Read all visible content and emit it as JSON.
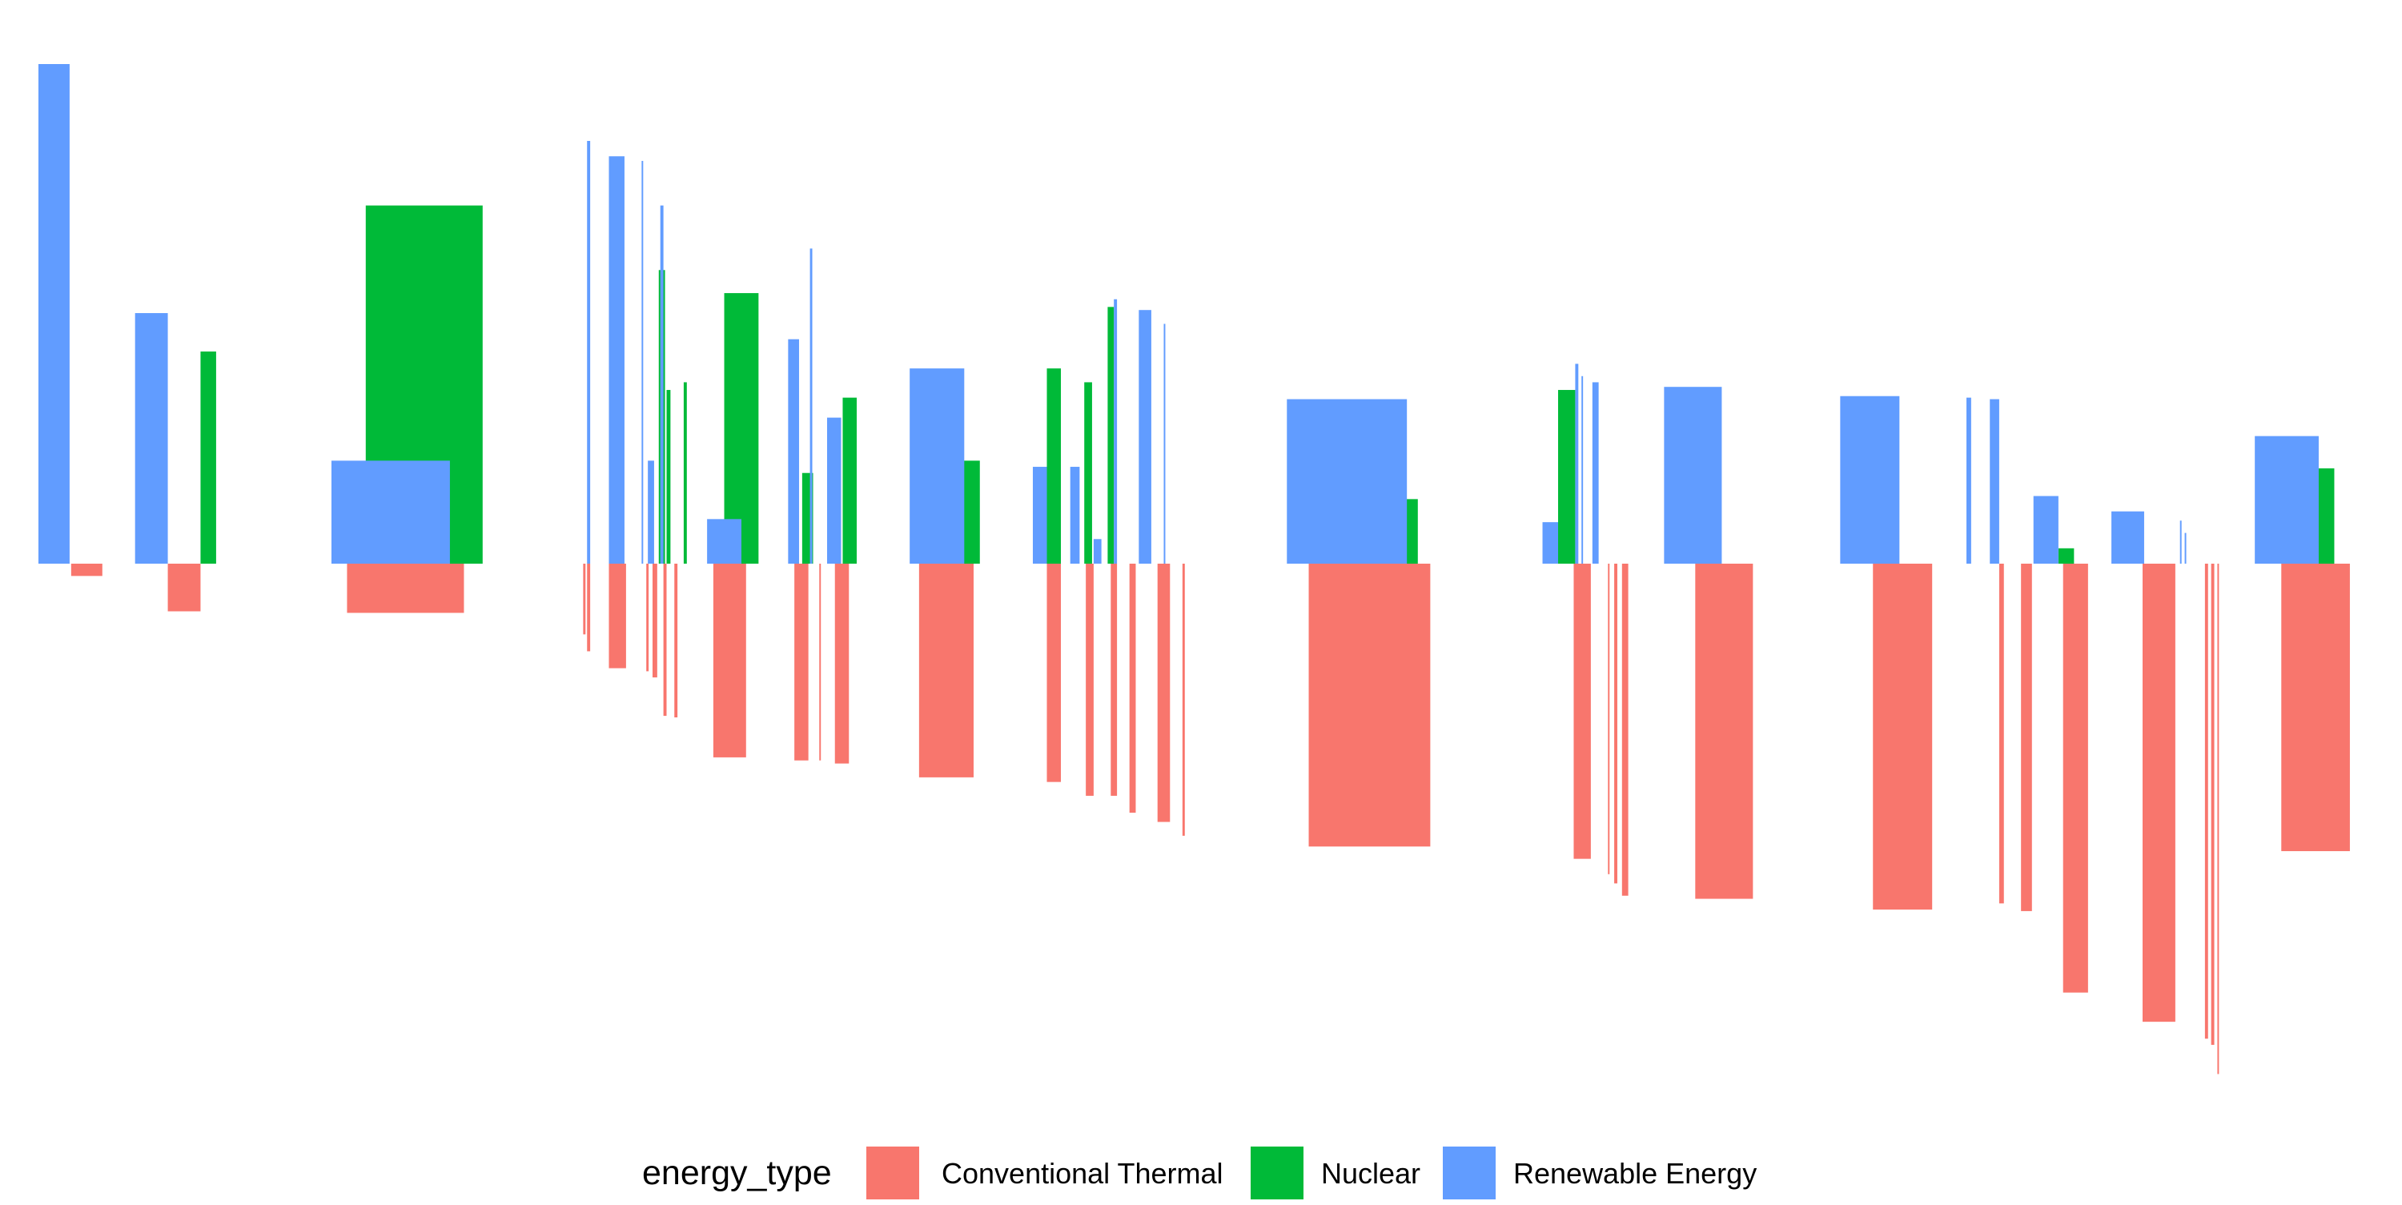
{
  "chart_data": {
    "type": "bar",
    "title": "",
    "xlabel": "",
    "ylabel": "",
    "grid": false,
    "axes_visible": false,
    "legend_position": "bottom",
    "legend_title": "energy_type",
    "ylim": [
      -345,
      330
    ],
    "xlim": [
      0,
      1500
    ],
    "series": [
      {
        "name": "Conventional Thermal",
        "color": "#F8766D",
        "bars": [
          {
            "x0": 21,
            "x1": 41,
            "value": -8
          },
          {
            "x0": 83,
            "x1": 104,
            "value": -31
          },
          {
            "x0": 198,
            "x1": 273,
            "value": -32
          },
          {
            "x0": 349.5,
            "x1": 351,
            "value": -46
          },
          {
            "x0": 352,
            "x1": 354,
            "value": -57
          },
          {
            "x0": 366,
            "x1": 377,
            "value": -68
          },
          {
            "x0": 390,
            "x1": 391.5,
            "value": -70
          },
          {
            "x0": 394,
            "x1": 397,
            "value": -74
          },
          {
            "x0": 401,
            "x1": 403,
            "value": -99
          },
          {
            "x0": 408,
            "x1": 410,
            "value": -100
          },
          {
            "x0": 433,
            "x1": 454,
            "value": -126
          },
          {
            "x0": 485,
            "x1": 494,
            "value": -128
          },
          {
            "x0": 501,
            "x1": 502,
            "value": -128
          },
          {
            "x0": 511,
            "x1": 520,
            "value": -130
          },
          {
            "x0": 565,
            "x1": 600,
            "value": -139
          },
          {
            "x0": 647,
            "x1": 656,
            "value": -142
          },
          {
            "x0": 672,
            "x1": 677,
            "value": -151
          },
          {
            "x0": 688,
            "x1": 692,
            "value": -151
          },
          {
            "x0": 700,
            "x1": 704,
            "value": -162
          },
          {
            "x0": 718,
            "x1": 726,
            "value": -168
          },
          {
            "x0": 734,
            "x1": 735.5,
            "value": -177
          },
          {
            "x0": 815,
            "x1": 893,
            "value": -184
          },
          {
            "x0": 985,
            "x1": 996,
            "value": -192
          },
          {
            "x0": 1007,
            "x1": 1008,
            "value": -202
          },
          {
            "x0": 1011,
            "x1": 1013,
            "value": -208
          },
          {
            "x0": 1016,
            "x1": 1020,
            "value": -216
          },
          {
            "x0": 1063,
            "x1": 1100,
            "value": -218
          },
          {
            "x0": 1177,
            "x1": 1215,
            "value": -225
          },
          {
            "x0": 1258,
            "x1": 1261,
            "value": -221
          },
          {
            "x0": 1272,
            "x1": 1279,
            "value": -226
          },
          {
            "x0": 1299,
            "x1": 1315,
            "value": -279
          },
          {
            "x0": 1350,
            "x1": 1371,
            "value": -298
          },
          {
            "x0": 1390,
            "x1": 1392,
            "value": -309
          },
          {
            "x0": 1394,
            "x1": 1396,
            "value": -313
          },
          {
            "x0": 1398,
            "x1": 1399,
            "value": -332
          },
          {
            "x0": 1439,
            "x1": 1483,
            "value": -187
          }
        ]
      },
      {
        "name": "Nuclear",
        "color": "#00BA38",
        "bars": [
          {
            "x0": 104,
            "x1": 114,
            "value": 138
          },
          {
            "x0": 210,
            "x1": 285,
            "value": 233
          },
          {
            "x0": 398,
            "x1": 402,
            "value": 191
          },
          {
            "x0": 403,
            "x1": 405.5,
            "value": 113
          },
          {
            "x0": 414,
            "x1": 416,
            "value": 118
          },
          {
            "x0": 440,
            "x1": 462,
            "value": 176
          },
          {
            "x0": 490,
            "x1": 497,
            "value": 59
          },
          {
            "x0": 516,
            "x1": 525,
            "value": 108
          },
          {
            "x0": 593,
            "x1": 604,
            "value": 67
          },
          {
            "x0": 647,
            "x1": 656,
            "value": 127
          },
          {
            "x0": 671,
            "x1": 676,
            "value": 118
          },
          {
            "x0": 686,
            "x1": 690,
            "value": 167
          },
          {
            "x0": 874,
            "x1": 885,
            "value": 42
          },
          {
            "x0": 975,
            "x1": 986,
            "value": 113
          },
          {
            "x0": 1296,
            "x1": 1306,
            "value": 10
          },
          {
            "x0": 1462,
            "x1": 1473,
            "value": 62
          }
        ]
      },
      {
        "name": "Renewable Energy",
        "color": "#619CFF",
        "bars": [
          {
            "x0": 0,
            "x1": 20,
            "value": 325
          },
          {
            "x0": 62,
            "x1": 83,
            "value": 163
          },
          {
            "x0": 188,
            "x1": 264,
            "value": 67
          },
          {
            "x0": 352,
            "x1": 354,
            "value": 275
          },
          {
            "x0": 366,
            "x1": 376,
            "value": 265
          },
          {
            "x0": 387,
            "x1": 388,
            "value": 262
          },
          {
            "x0": 391,
            "x1": 395,
            "value": 67
          },
          {
            "x0": 399,
            "x1": 401,
            "value": 233
          },
          {
            "x0": 429,
            "x1": 451,
            "value": 29
          },
          {
            "x0": 481,
            "x1": 488,
            "value": 146
          },
          {
            "x0": 495,
            "x1": 496.5,
            "value": 205
          },
          {
            "x0": 506,
            "x1": 515,
            "value": 95
          },
          {
            "x0": 559,
            "x1": 594,
            "value": 127
          },
          {
            "x0": 638,
            "x1": 647,
            "value": 63
          },
          {
            "x0": 662,
            "x1": 668,
            "value": 63
          },
          {
            "x0": 677,
            "x1": 682,
            "value": 16
          },
          {
            "x0": 690,
            "x1": 692,
            "value": 172
          },
          {
            "x0": 706,
            "x1": 714,
            "value": 165
          },
          {
            "x0": 722,
            "x1": 723,
            "value": 156
          },
          {
            "x0": 801,
            "x1": 878,
            "value": 107
          },
          {
            "x0": 965,
            "x1": 975,
            "value": 27
          },
          {
            "x0": 986,
            "x1": 988,
            "value": 130
          },
          {
            "x0": 990,
            "x1": 991,
            "value": 122
          },
          {
            "x0": 997,
            "x1": 1001,
            "value": 118
          },
          {
            "x0": 1043,
            "x1": 1080,
            "value": 115
          },
          {
            "x0": 1156,
            "x1": 1194,
            "value": 109
          },
          {
            "x0": 1237,
            "x1": 1240,
            "value": 108
          },
          {
            "x0": 1252,
            "x1": 1258,
            "value": 107
          },
          {
            "x0": 1280,
            "x1": 1296,
            "value": 44
          },
          {
            "x0": 1330,
            "x1": 1351,
            "value": 34
          },
          {
            "x0": 1374,
            "x1": 1375,
            "value": 28
          },
          {
            "x0": 1377,
            "x1": 1378,
            "value": 20
          },
          {
            "x0": 1422,
            "x1": 1463,
            "value": 83
          }
        ]
      }
    ],
    "legend": [
      {
        "label": "Conventional Thermal",
        "color": "#F8766D"
      },
      {
        "label": "Nuclear",
        "color": "#00BA38"
      },
      {
        "label": "Renewable Energy",
        "color": "#619CFF"
      }
    ]
  }
}
